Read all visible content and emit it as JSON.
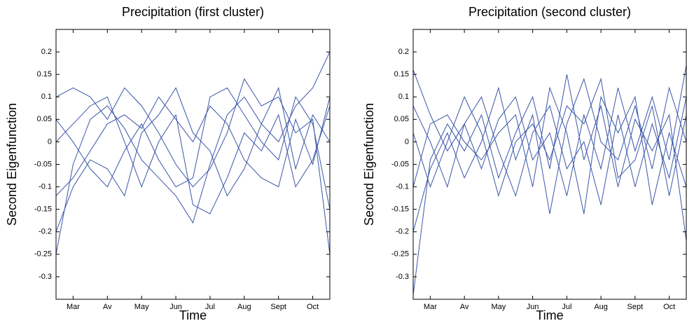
{
  "chart_data": [
    {
      "type": "line",
      "title": "Precipitation (first cluster)",
      "xlabel": "Time",
      "ylabel": "Second Eigenfunction",
      "x": [
        0.5,
        1,
        1.5,
        2,
        2.5,
        3,
        3.5,
        4,
        4.5,
        5,
        5.5,
        6,
        6.5,
        7,
        7.5,
        8,
        8.5
      ],
      "xlim": [
        0.5,
        8.5
      ],
      "xticks": [
        {
          "value": 1,
          "label": "Mar"
        },
        {
          "value": 2,
          "label": "Av"
        },
        {
          "value": 3,
          "label": "May"
        },
        {
          "value": 4,
          "label": "Jun"
        },
        {
          "value": 5,
          "label": "Jul"
        },
        {
          "value": 6,
          "label": "Aug"
        },
        {
          "value": 7,
          "label": "Sept"
        },
        {
          "value": 8,
          "label": "Oct"
        }
      ],
      "ylim": [
        -0.35,
        0.25
      ],
      "yticks": [
        -0.3,
        -0.25,
        -0.2,
        -0.15,
        -0.1,
        -0.05,
        0,
        0.05,
        0.1,
        0.15,
        0.2
      ],
      "series": [
        {
          "color": "#3a56a8",
          "values": [
            -0.25,
            -0.05,
            0.05,
            0.08,
            0.03,
            -0.04,
            -0.08,
            -0.12,
            -0.18,
            -0.05,
            0.06,
            0.1,
            0.04,
            0.0,
            0.08,
            0.12,
            0.2
          ]
        },
        {
          "color": "#3a56a8",
          "values": [
            0.1,
            0.12,
            0.1,
            0.05,
            0.12,
            0.08,
            0.02,
            -0.05,
            -0.1,
            -0.06,
            0.02,
            0.14,
            0.08,
            0.1,
            0.02,
            0.05,
            -0.25
          ]
        },
        {
          "color": "#3a56a8",
          "values": [
            -0.12,
            -0.08,
            -0.02,
            0.04,
            0.06,
            0.03,
            0.1,
            0.05,
            0.0,
            0.08,
            0.04,
            -0.04,
            -0.08,
            -0.1,
            0.05,
            -0.05,
            0.1
          ]
        },
        {
          "color": "#3a56a8",
          "values": [
            0.05,
            0.0,
            -0.06,
            -0.1,
            -0.02,
            0.04,
            -0.04,
            -0.1,
            -0.08,
            0.1,
            0.12,
            0.06,
            0.0,
            -0.04,
            0.1,
            0.04,
            -0.15
          ]
        },
        {
          "color": "#3a56a8",
          "values": [
            -0.2,
            -0.1,
            -0.04,
            -0.06,
            -0.12,
            0.02,
            0.06,
            0.12,
            0.02,
            -0.02,
            -0.12,
            -0.06,
            0.04,
            0.12,
            -0.06,
            0.06,
            0.0
          ]
        },
        {
          "color": "#3a56a8",
          "values": [
            0.0,
            0.04,
            0.08,
            0.1,
            0.0,
            -0.1,
            0.0,
            0.06,
            -0.14,
            -0.16,
            -0.08,
            0.02,
            -0.02,
            0.06,
            -0.1,
            -0.04,
            0.08
          ]
        }
      ]
    },
    {
      "type": "line",
      "title": "Precipitation (second cluster)",
      "xlabel": "Time",
      "ylabel": "Second Eigenfunction",
      "x": [
        0.5,
        1,
        1.5,
        2,
        2.5,
        3,
        3.5,
        4,
        4.5,
        5,
        5.5,
        6,
        6.5,
        7,
        7.5,
        8,
        8.5
      ],
      "xlim": [
        0.5,
        8.5
      ],
      "xticks": [
        {
          "value": 1,
          "label": "Mar"
        },
        {
          "value": 2,
          "label": "Av"
        },
        {
          "value": 3,
          "label": "May"
        },
        {
          "value": 4,
          "label": "Jun"
        },
        {
          "value": 5,
          "label": "Jul"
        },
        {
          "value": 6,
          "label": "Aug"
        },
        {
          "value": 7,
          "label": "Sept"
        },
        {
          "value": 8,
          "label": "Oct"
        }
      ],
      "xlim_note_unused": null,
      "ylim": [
        -0.35,
        0.25
      ],
      "yticks": [
        -0.3,
        -0.25,
        -0.2,
        -0.15,
        -0.1,
        -0.05,
        0,
        0.05,
        0.1,
        0.15,
        0.2
      ],
      "series": [
        {
          "color": "#3a56a8",
          "values": [
            -0.34,
            -0.04,
            0.04,
            -0.02,
            0.06,
            -0.08,
            0.02,
            0.1,
            -0.06,
            0.15,
            -0.04,
            0.08,
            -0.1,
            0.05,
            -0.02,
            0.06,
            -0.22
          ]
        },
        {
          "color": "#3a56a8",
          "values": [
            0.16,
            0.06,
            -0.02,
            0.04,
            -0.06,
            0.05,
            0.1,
            -0.04,
            0.02,
            -0.12,
            0.06,
            -0.06,
            0.12,
            -0.02,
            0.1,
            -0.04,
            0.17
          ]
        },
        {
          "color": "#3a56a8",
          "values": [
            -0.2,
            -0.06,
            0.02,
            -0.08,
            0.0,
            0.12,
            -0.04,
            0.06,
            -0.16,
            0.04,
            0.14,
            0.0,
            -0.04,
            0.08,
            -0.06,
            0.12,
            0.0
          ]
        },
        {
          "color": "#3a56a8",
          "values": [
            0.08,
            0.0,
            -0.1,
            0.04,
            0.1,
            -0.02,
            -0.12,
            0.02,
            0.08,
            -0.06,
            0.0,
            -0.14,
            0.06,
            -0.1,
            0.04,
            -0.08,
            0.1
          ]
        },
        {
          "color": "#3a56a8",
          "values": [
            -0.1,
            0.04,
            0.06,
            0.0,
            -0.04,
            0.02,
            0.06,
            -0.1,
            0.12,
            0.02,
            -0.16,
            0.1,
            0.02,
            0.1,
            -0.14,
            0.02,
            -0.1
          ]
        },
        {
          "color": "#3a56a8",
          "values": [
            0.02,
            -0.1,
            0.0,
            0.1,
            0.02,
            -0.12,
            0.0,
            0.04,
            -0.04,
            0.08,
            0.04,
            0.14,
            -0.08,
            -0.04,
            0.08,
            -0.12,
            0.06
          ]
        }
      ]
    }
  ]
}
